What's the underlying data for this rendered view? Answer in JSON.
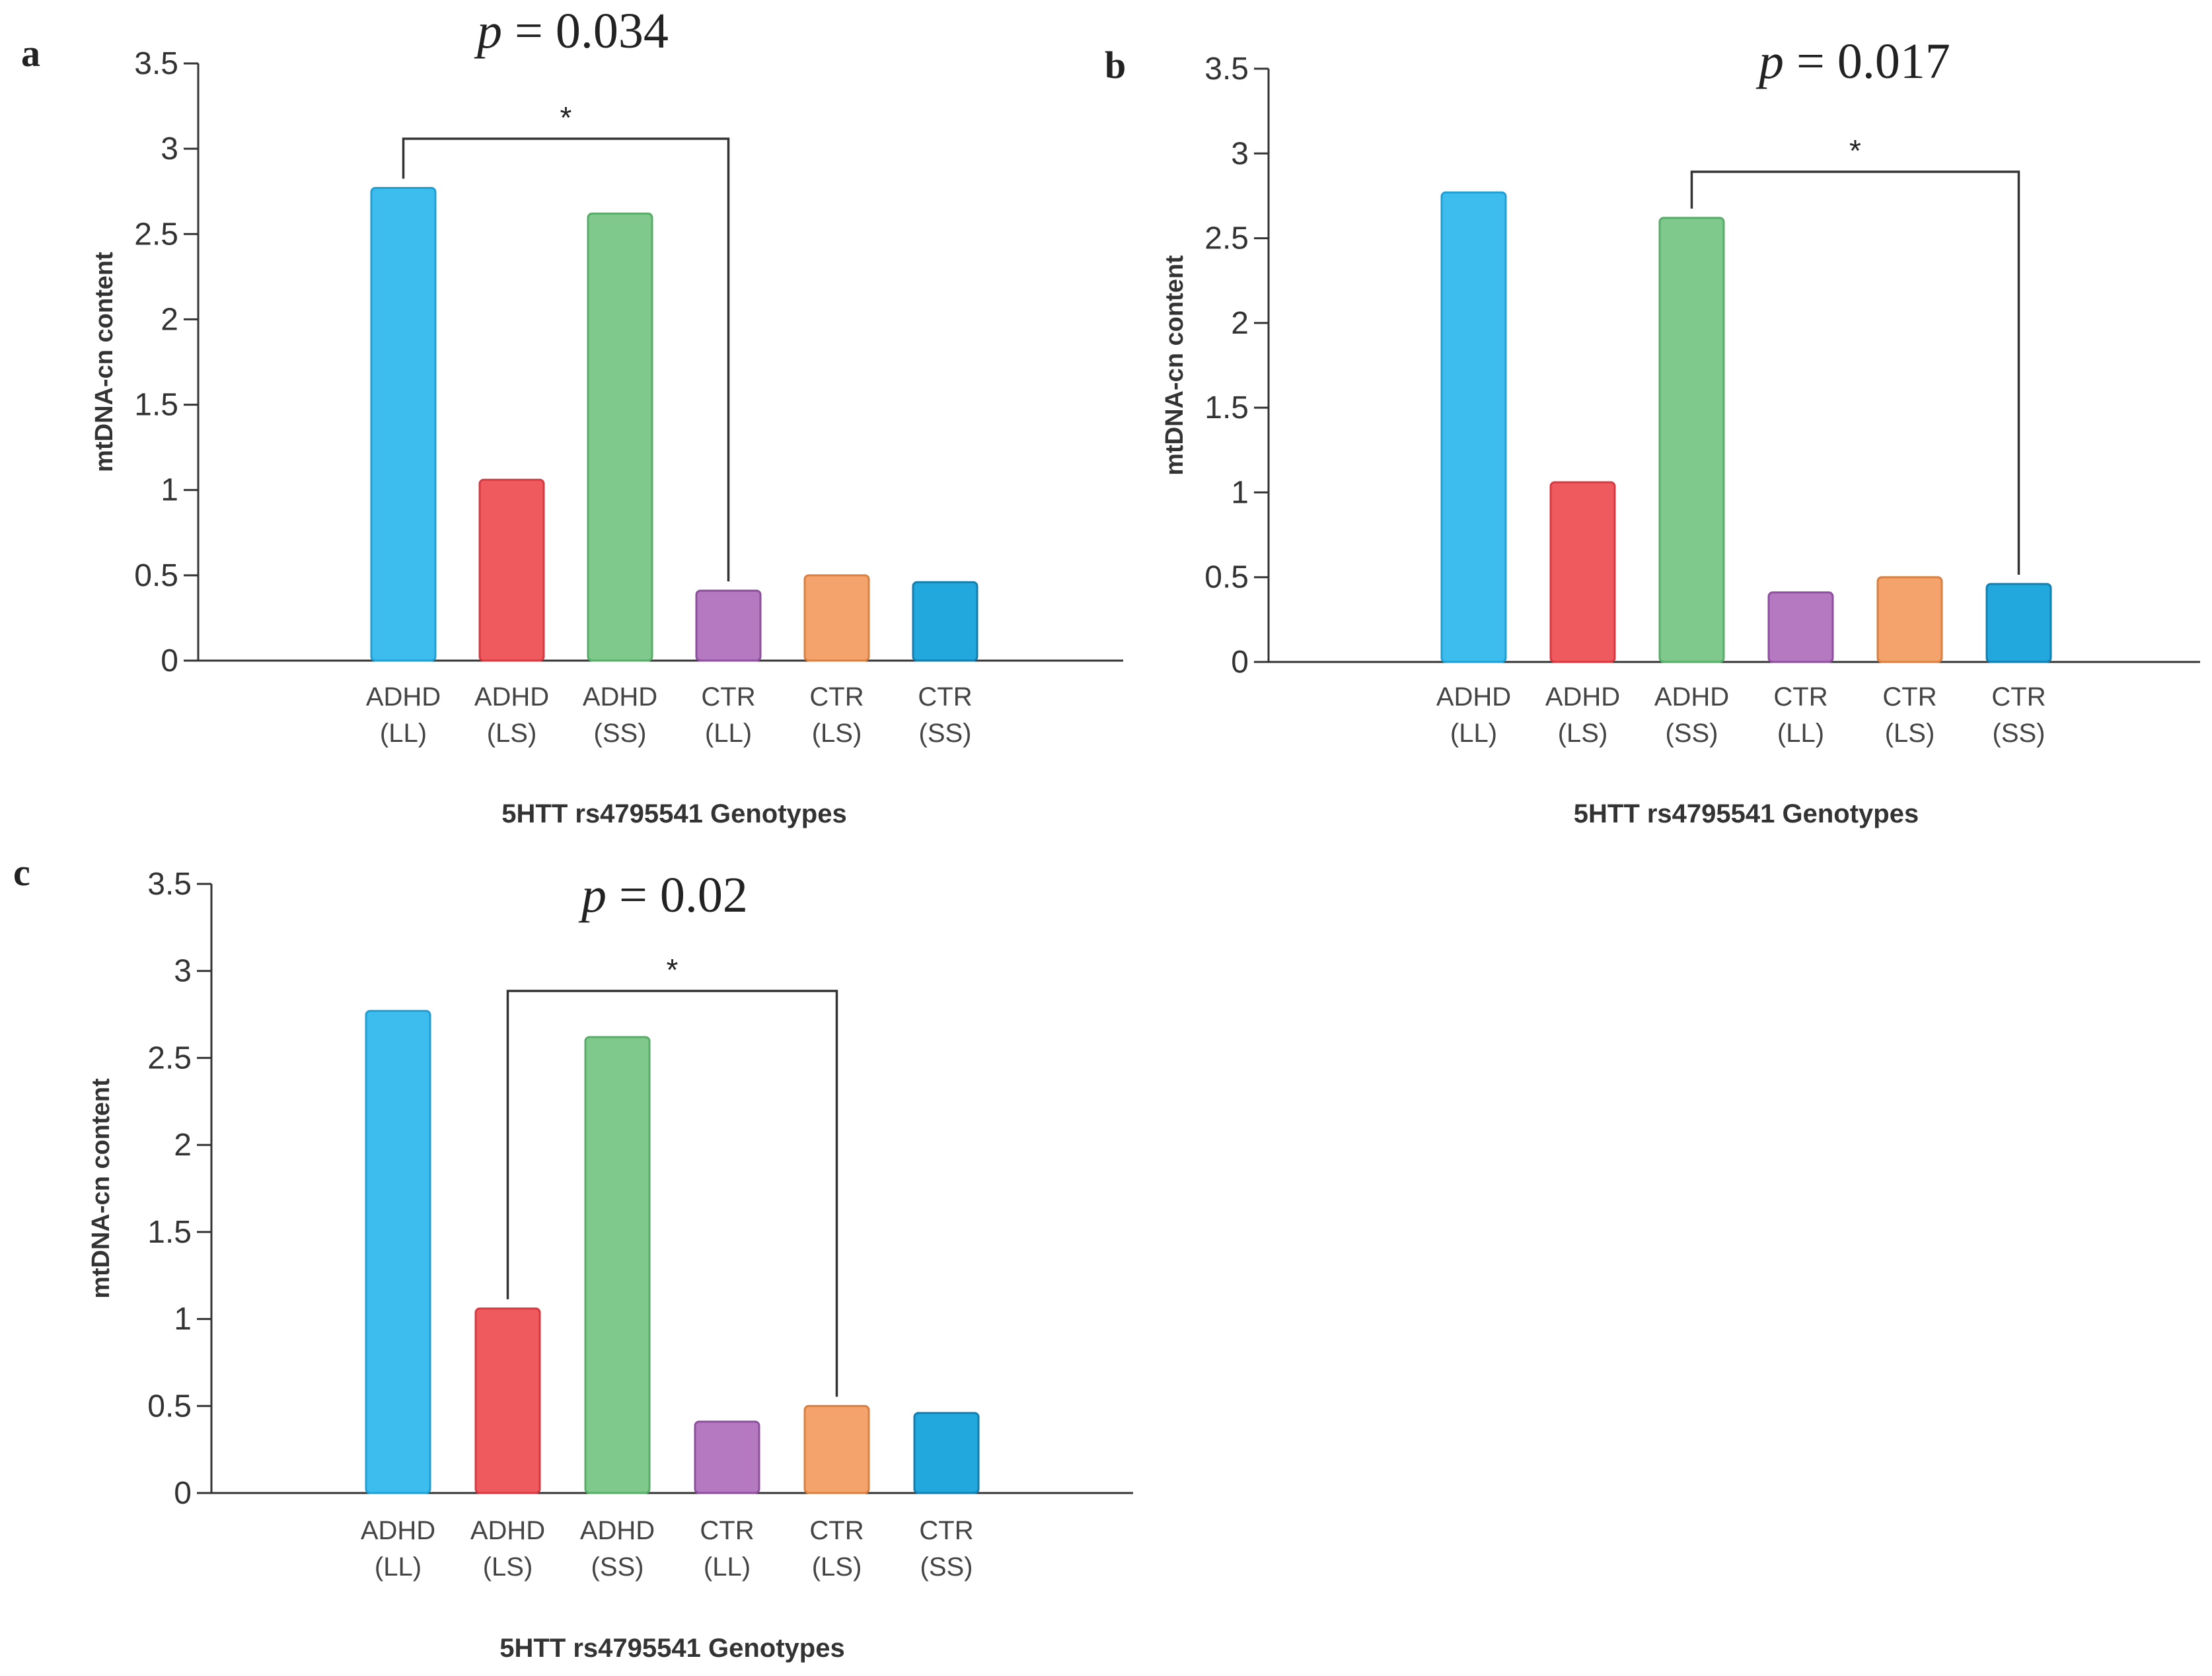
{
  "chart_data": [
    {
      "panel": "a",
      "type": "bar",
      "categories": [
        [
          "ADHD",
          "(LL)"
        ],
        [
          "ADHD",
          "(LS)"
        ],
        [
          "ADHD",
          "(SS)"
        ],
        [
          "CTR",
          "(LL)"
        ],
        [
          "CTR",
          "(LS)"
        ],
        [
          "CTR",
          "(SS)"
        ]
      ],
      "values": [
        2.77,
        1.06,
        2.62,
        0.41,
        0.5,
        0.46
      ],
      "ylim": [
        0,
        3.5
      ],
      "yticks": [
        "0",
        "0.5",
        "1",
        "1.5",
        "2",
        "2.5",
        "3",
        "3.5"
      ],
      "xlabel": "5HTT rs4795541 Genotypes",
      "ylabel": "mtDNA-cn content",
      "significance": {
        "from_index": 0,
        "to_index": 3,
        "label": "*",
        "p_prefix": "p",
        "p_text": " = 0.034"
      }
    },
    {
      "panel": "b",
      "type": "bar",
      "categories": [
        [
          "ADHD",
          "(LL)"
        ],
        [
          "ADHD",
          "(LS)"
        ],
        [
          "ADHD",
          "(SS)"
        ],
        [
          "CTR",
          "(LL)"
        ],
        [
          "CTR",
          "(LS)"
        ],
        [
          "CTR",
          "(SS)"
        ]
      ],
      "values": [
        2.77,
        1.06,
        2.62,
        0.41,
        0.5,
        0.46
      ],
      "ylim": [
        0,
        3.5
      ],
      "yticks": [
        "0",
        "0.5",
        "1",
        "1.5",
        "2",
        "2.5",
        "3",
        "3.5"
      ],
      "xlabel": "5HTT rs4795541 Genotypes",
      "ylabel": "mtDNA-cn content",
      "significance": {
        "from_index": 2,
        "to_index": 5,
        "label": "*",
        "p_prefix": "p",
        "p_text": " = 0.017"
      }
    },
    {
      "panel": "c",
      "type": "bar",
      "categories": [
        [
          "ADHD",
          "(LL)"
        ],
        [
          "ADHD",
          "(LS)"
        ],
        [
          "ADHD",
          "(SS)"
        ],
        [
          "CTR",
          "(LL)"
        ],
        [
          "CTR",
          "(LS)"
        ],
        [
          "CTR",
          "(SS)"
        ]
      ],
      "values": [
        2.77,
        1.06,
        2.62,
        0.41,
        0.5,
        0.46
      ],
      "ylim": [
        0,
        3.5
      ],
      "yticks": [
        "0",
        "0.5",
        "1",
        "1.5",
        "2",
        "2.5",
        "3",
        "3.5"
      ],
      "xlabel": "5HTT rs4795541 Genotypes",
      "ylabel": "mtDNA-cn content",
      "significance": {
        "from_index": 1,
        "to_index": 4,
        "label": "*",
        "p_prefix": "p",
        "p_text": " = 0.02"
      }
    }
  ],
  "bar_colors": [
    "#3cbdee",
    "#ee5a5e",
    "#7ec98b",
    "#b579c2",
    "#f4a36c",
    "#22a8dc"
  ],
  "bar_stroke_colors": [
    "#1f9fd4",
    "#d63a40",
    "#58ad68",
    "#8e4f9e",
    "#d98040",
    "#137fb0"
  ]
}
